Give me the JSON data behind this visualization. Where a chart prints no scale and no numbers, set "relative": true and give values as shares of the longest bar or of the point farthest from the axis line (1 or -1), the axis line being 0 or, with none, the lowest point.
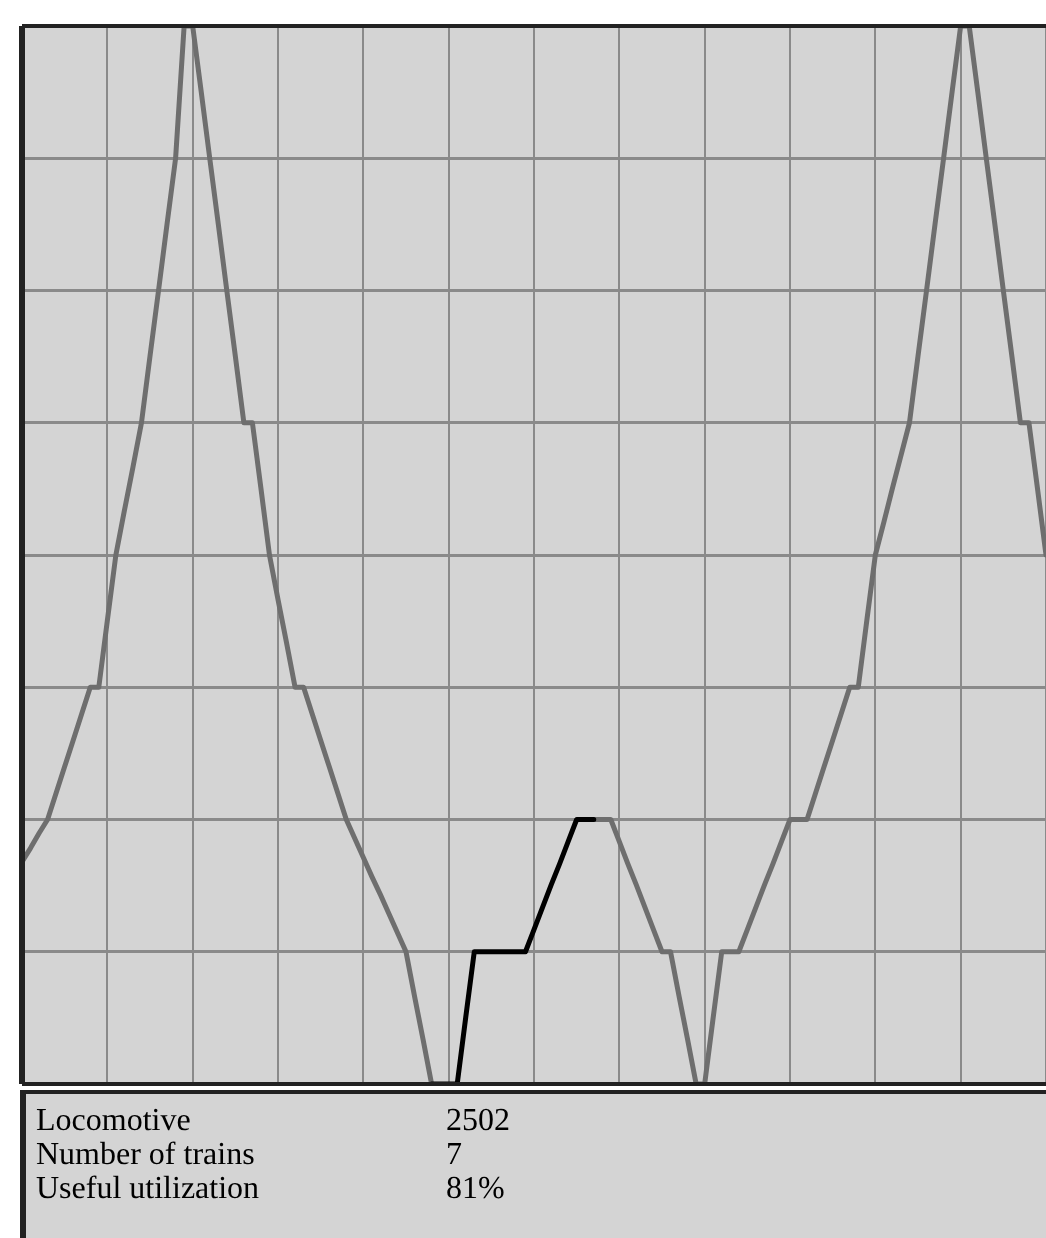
{
  "chart_data": {
    "type": "line",
    "relative": true,
    "grid": true,
    "legend": false,
    "marker": "none",
    "line_style": "solid",
    "categories": [
      null,
      null,
      null,
      null,
      null,
      null,
      null,
      null,
      null,
      null,
      null,
      null,
      null,
      null,
      null,
      null,
      null,
      null,
      null,
      null,
      null,
      null,
      null,
      null,
      null,
      null,
      null,
      null,
      null,
      null,
      null,
      null,
      null,
      null,
      null,
      null,
      null,
      null,
      null,
      null,
      null,
      null,
      null,
      null,
      null,
      null,
      null,
      null,
      null,
      null,
      null,
      null,
      null,
      null,
      null,
      null,
      null,
      null,
      null,
      null,
      null,
      null,
      null,
      null,
      null,
      null,
      null,
      null,
      null,
      null,
      null,
      null,
      null,
      null,
      null,
      null,
      null,
      null,
      null,
      null,
      null,
      null,
      null,
      null,
      null,
      null,
      null,
      null,
      null,
      null,
      null,
      null,
      null,
      null,
      null,
      null,
      null,
      null,
      null,
      null,
      null,
      null,
      null,
      null,
      null,
      null,
      null,
      null,
      null,
      null,
      null,
      null,
      null,
      null,
      null,
      null,
      null,
      null,
      null,
      null,
      null
    ],
    "series": [
      {
        "color": "#6e6e6e",
        "values": [
          0.21,
          0.223,
          0.237,
          0.25,
          0.275,
          0.3,
          0.325,
          0.35,
          0.375,
          0.375,
          0.438,
          0.5,
          0.542,
          0.583,
          0.625,
          0.688,
          0.75,
          0.813,
          0.875,
          1,
          1,
          0.938,
          0.875,
          0.813,
          0.75,
          0.688,
          0.625,
          0.625,
          0.563,
          0.5,
          0.458,
          0.417,
          0.375,
          0.375,
          0.35,
          0.325,
          0.3,
          0.275,
          0.25,
          0.232,
          0.214,
          0.196,
          0.179,
          0.161,
          0.143,
          0.125,
          0.083,
          0.042,
          0,
          null,
          null,
          null,
          null,
          null,
          null,
          null,
          null,
          null,
          null,
          null,
          null,
          null,
          null,
          null,
          null,
          null,
          null,
          0.25,
          0.25,
          0.25,
          0.229,
          0.208,
          0.188,
          0.167,
          0.146,
          0.125,
          0.125,
          0.083,
          0.042,
          0,
          0,
          0.063,
          0.125,
          0.125,
          0.125,
          0.146,
          0.167,
          0.188,
          0.208,
          0.229,
          0.25,
          0.25,
          0.25,
          0.275,
          0.3,
          0.325,
          0.35,
          0.375,
          0.375,
          0.438,
          0.5,
          0.531,
          0.563,
          0.594,
          0.625,
          0.688,
          0.75,
          0.813,
          0.875,
          0.938,
          1,
          1,
          0.938,
          0.875,
          0.813,
          0.75,
          0.688,
          0.625,
          0.625,
          0.563,
          0.5
        ]
      },
      {
        "color": "#000000",
        "values": [
          null,
          null,
          null,
          null,
          null,
          null,
          null,
          null,
          null,
          null,
          null,
          null,
          null,
          null,
          null,
          null,
          null,
          null,
          null,
          null,
          null,
          null,
          null,
          null,
          null,
          null,
          null,
          null,
          null,
          null,
          null,
          null,
          null,
          null,
          null,
          null,
          null,
          null,
          null,
          null,
          null,
          null,
          null,
          null,
          null,
          null,
          null,
          null,
          0,
          0,
          0,
          0,
          0.063,
          0.125,
          0.125,
          0.125,
          0.125,
          0.125,
          0.125,
          0.125,
          0.146,
          0.167,
          0.188,
          0.208,
          0.229,
          0.25,
          0.25,
          0.25,
          null,
          null,
          null,
          null,
          null,
          null,
          null,
          null,
          null,
          null,
          null,
          null,
          null,
          null,
          null,
          null,
          null,
          null,
          null,
          null,
          null,
          null,
          null,
          null,
          null,
          null,
          null,
          null,
          null,
          null,
          null,
          null,
          null,
          null,
          null,
          null,
          null,
          null,
          null,
          null,
          null,
          null,
          null,
          null,
          null,
          null,
          null,
          null,
          null,
          null,
          null,
          null,
          null
        ]
      }
    ],
    "annotations": [
      "Locomotive",
      "2502",
      "Number of trains",
      "7",
      "Useful utilization",
      "81%"
    ]
  }
}
